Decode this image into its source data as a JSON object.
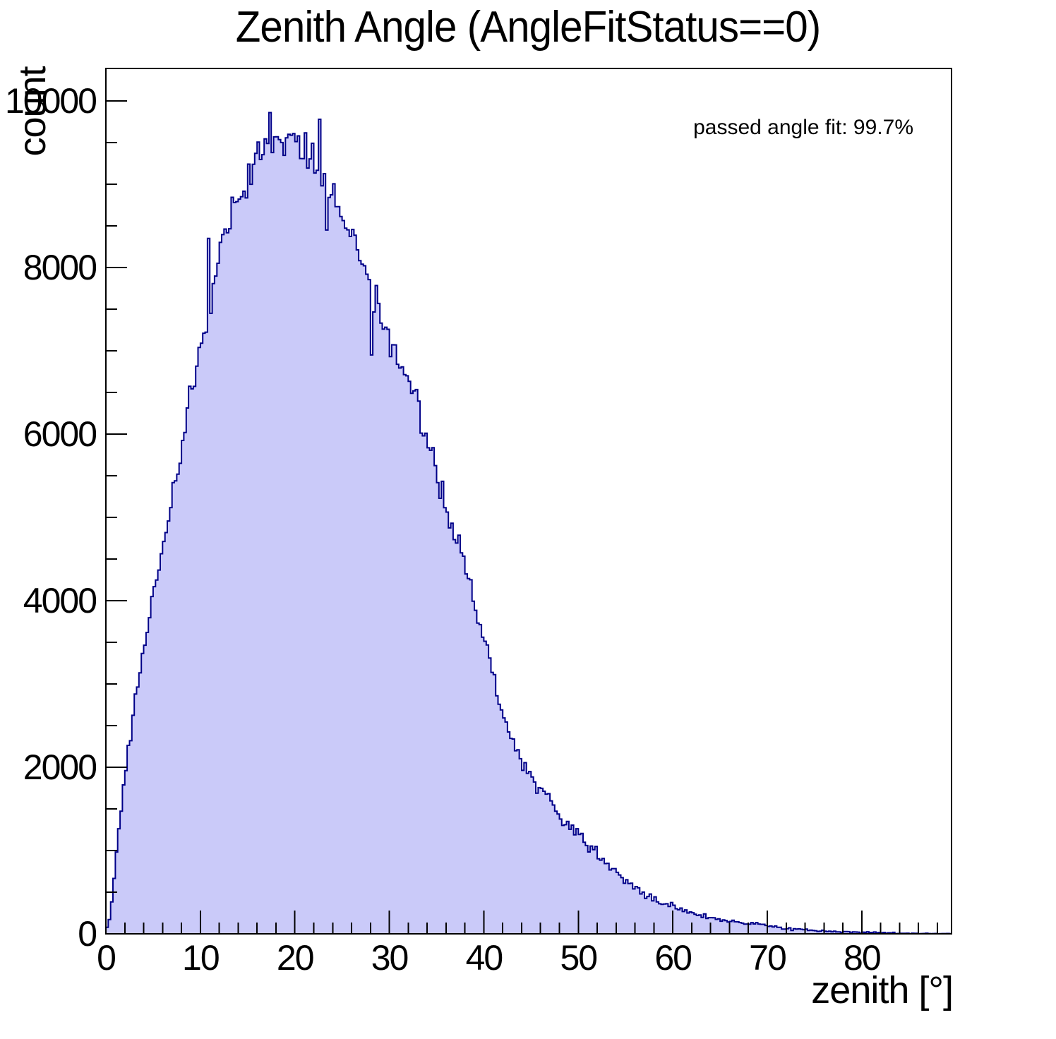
{
  "title": "Zenith Angle (AngleFitStatus==0)",
  "annotation": "passed angle fit: 99.7%",
  "y_axis": {
    "title": "count",
    "tick_values": [
      0,
      2000,
      4000,
      6000,
      8000,
      10000
    ],
    "tick_labels": [
      "0",
      "2000",
      "4000",
      "6000",
      "8000",
      "10000"
    ],
    "minor_step": 500
  },
  "x_axis": {
    "title": "zenith [°]",
    "tick_values": [
      0,
      10,
      20,
      30,
      40,
      50,
      60,
      70,
      80
    ],
    "tick_labels": [
      "0",
      "10",
      "20",
      "30",
      "40",
      "50",
      "60",
      "70",
      "80"
    ],
    "minor_step": 2
  },
  "colors": {
    "fill": "#cacaf9",
    "line": "#000088",
    "axis": "#000000",
    "text": "#000000",
    "background": "#ffffff"
  },
  "chart_data": {
    "type": "bar",
    "subtype": "histogram",
    "title": "Zenith Angle (AngleFitStatus==0)",
    "xlabel": "zenith [°]",
    "ylabel": "count",
    "xlim": [
      0,
      89.5
    ],
    "ylim": [
      0,
      10390
    ],
    "bin_width": 0.25,
    "grid": false,
    "legend": "none",
    "passed_angle_fit_pct": 99.7,
    "peak": {
      "x": 18,
      "counts": 9850
    },
    "envelope_x": [
      0,
      0.5,
      1,
      2,
      3,
      4,
      6,
      8,
      10,
      12,
      14,
      16,
      17,
      18,
      19,
      20,
      21,
      22,
      23,
      24,
      26,
      28,
      30,
      32,
      34,
      36,
      38,
      40,
      42,
      44,
      46,
      48,
      50,
      52,
      54,
      56,
      58,
      60,
      62,
      64,
      66,
      68,
      70,
      72,
      74,
      76,
      78,
      80,
      82,
      84,
      86,
      88,
      89.5
    ],
    "envelope_counts": [
      5,
      250,
      800,
      1900,
      2700,
      3450,
      4700,
      5800,
      7100,
      8200,
      8870,
      9300,
      9500,
      9620,
      9570,
      9500,
      9420,
      9300,
      9050,
      8850,
      8400,
      7800,
      7100,
      6650,
      5950,
      5150,
      4450,
      3600,
      2600,
      2050,
      1750,
      1450,
      1210,
      950,
      740,
      550,
      430,
      330,
      250,
      185,
      150,
      125,
      95,
      55,
      45,
      32,
      23,
      16,
      12,
      8,
      5,
      3,
      2
    ],
    "outliers": [
      {
        "x": 10.9,
        "counts": 8350
      },
      {
        "x": 11.15,
        "counts": 7450
      },
      {
        "x": 17.45,
        "counts": 9860
      },
      {
        "x": 22.6,
        "counts": 9780
      },
      {
        "x": 23.35,
        "counts": 8450
      },
      {
        "x": 28.1,
        "counts": 6950
      }
    ],
    "noise": {
      "seed": 20240613,
      "amplitude": 3.4
    }
  }
}
